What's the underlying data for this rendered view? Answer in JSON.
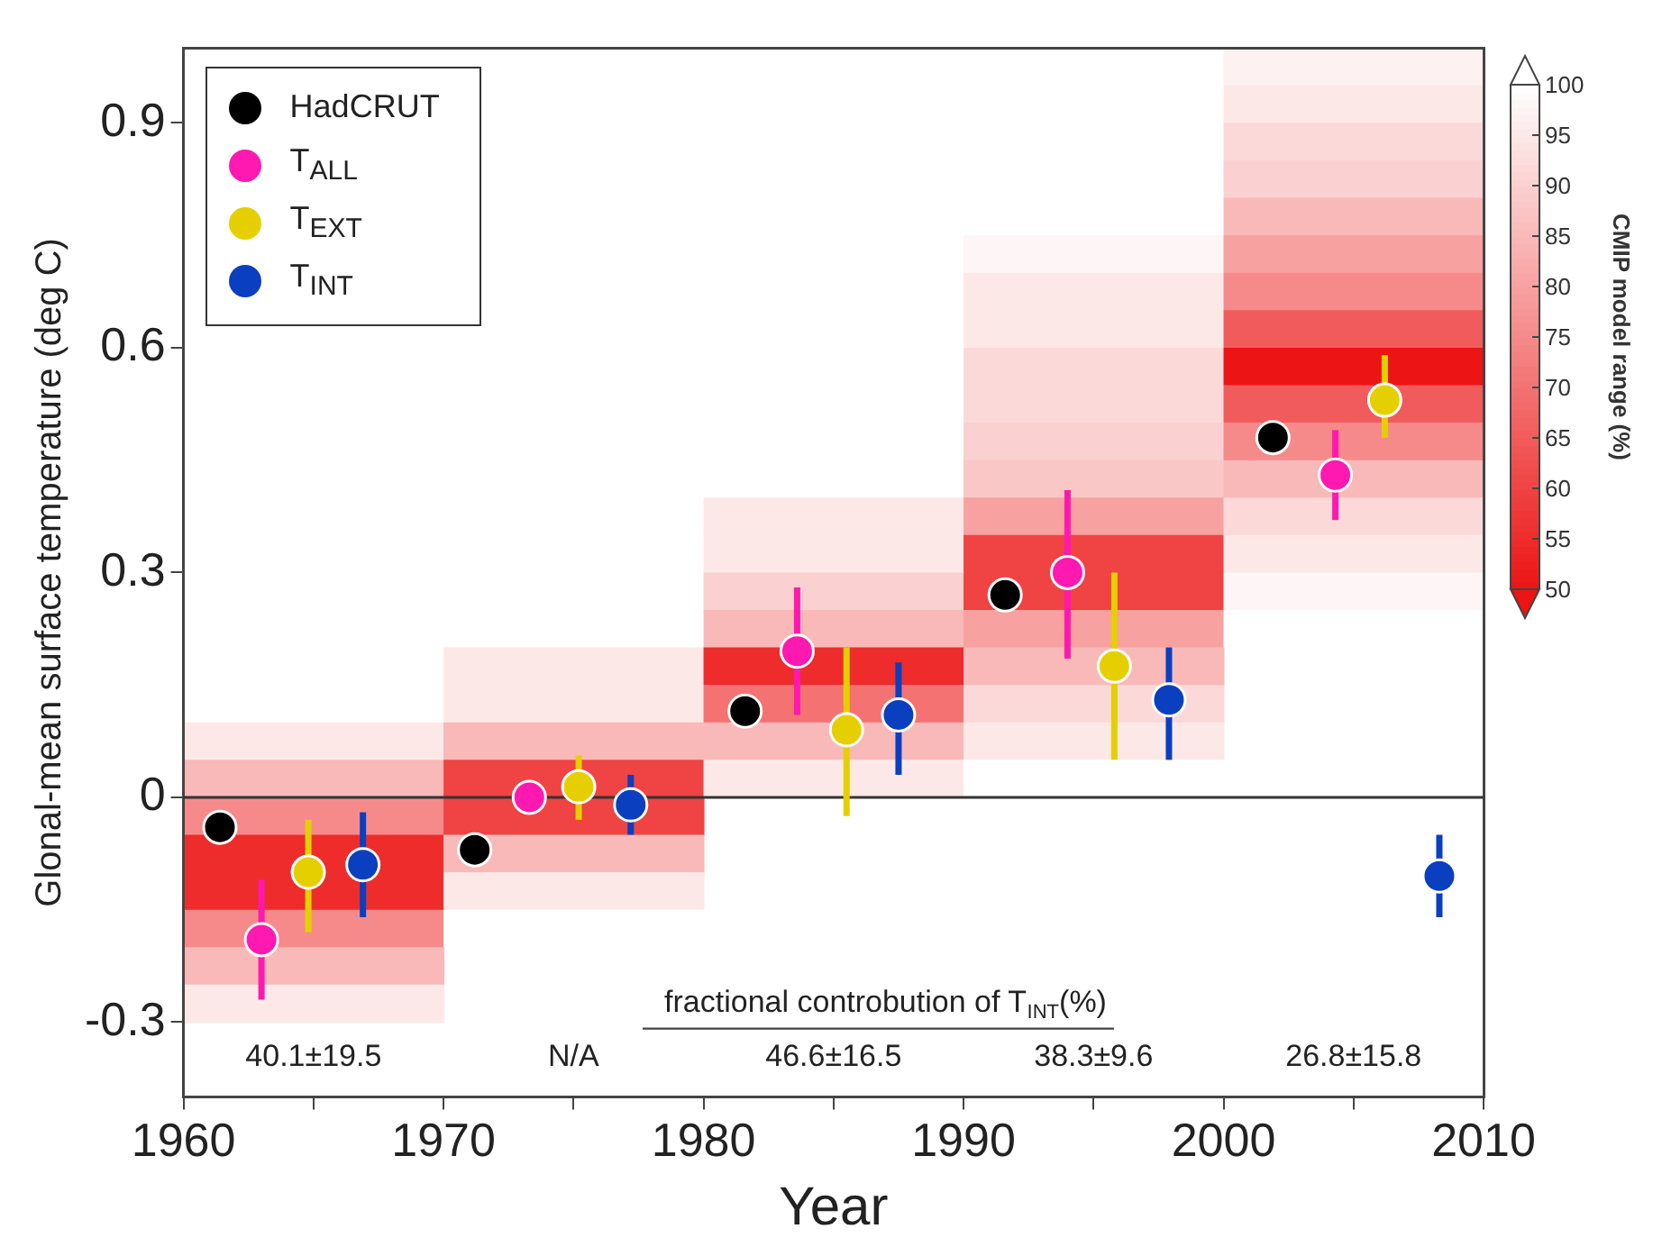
{
  "chart_data": [
    {
      "type": "heatmap",
      "clabel": "CMIP model range (%)",
      "xlim": [
        1960,
        2010
      ],
      "xticks": [
        1960,
        1970,
        1980,
        1990,
        2000,
        2010
      ],
      "ylim": [
        -0.3,
        1.0
      ],
      "yticks": [
        -0.3,
        0,
        0.3,
        0.6,
        0.9
      ],
      "tick_labels": false,
      "clim": [
        50,
        100
      ],
      "cticks": [
        50,
        55,
        60,
        65,
        70,
        75,
        80,
        85,
        90,
        95,
        100
      ],
      "cells": [
        [
          null,
          null,
          null,
          null,
          97
        ],
        [
          null,
          null,
          null,
          null,
          95
        ],
        [
          null,
          null,
          null,
          null,
          92
        ],
        [
          null,
          null,
          null,
          null,
          90
        ],
        [
          null,
          null,
          null,
          100,
          85
        ],
        [
          null,
          null,
          null,
          98,
          80
        ],
        [
          null,
          null,
          null,
          95,
          75
        ],
        [
          null,
          null,
          null,
          95,
          65
        ],
        [
          null,
          null,
          null,
          92,
          50
        ],
        [
          null,
          null,
          null,
          92,
          65
        ],
        [
          null,
          null,
          100,
          90,
          75
        ],
        [
          null,
          null,
          100,
          88,
          85
        ],
        [
          null,
          null,
          95,
          80,
          92
        ],
        [
          null,
          null,
          95,
          60,
          95
        ],
        [
          null,
          null,
          90,
          60,
          98
        ],
        [
          null,
          null,
          85,
          80,
          100
        ],
        [
          null,
          95,
          55,
          85,
          null
        ],
        [
          100,
          95,
          70,
          92,
          null
        ],
        [
          95,
          85,
          85,
          95,
          null
        ],
        [
          85,
          60,
          95,
          100,
          null
        ],
        [
          75,
          60,
          null,
          null,
          null
        ],
        [
          55,
          85,
          null,
          null,
          null
        ],
        [
          55,
          95,
          null,
          null,
          null
        ],
        [
          75,
          100,
          null,
          null,
          null
        ],
        [
          85,
          null,
          null,
          null,
          null
        ],
        [
          95,
          null,
          null,
          null,
          null
        ]
      ]
    },
    {
      "type": "scatter",
      "xlabel": "Year",
      "ylabel": "Glonal-mean surface temperature (deg C)",
      "xlim": [
        1960,
        2010
      ],
      "xticks": [
        1960,
        {
          "value": 1965,
          "label": null
        },
        1970,
        {
          "value": 1975,
          "label": null
        },
        1980,
        {
          "value": 1985,
          "label": null
        },
        1990,
        {
          "value": 1995,
          "label": null
        },
        2000,
        {
          "value": 2005,
          "label": null
        },
        2010
      ],
      "ylim": [
        -0.4,
        1.0
      ],
      "yticks": [
        -0.3,
        0,
        0.3,
        0.6,
        0.9
      ],
      "legend": "top left",
      "marker": "circle",
      "ref_lines": [
        {
          "axis": "y",
          "value": 0,
          "color": "#333333"
        }
      ],
      "annotations": [
        "fractional controbution of T$_{INT}$(%)",
        "40.1±19.5",
        "N/A",
        "46.6±16.5",
        "38.3±9.6",
        "26.8±15.8"
      ],
      "series": [
        {
          "name": "HadCRUT",
          "color": "#000000",
          "x": [
            1961.4,
            1971.2,
            1981.6,
            1991.6,
            2001.9
          ],
          "values": [
            -0.04,
            -0.07,
            0.115,
            0.27,
            0.48
          ]
        },
        {
          "name": "T$_{ALL}$",
          "color": "#ff19b0",
          "x": [
            1963.0,
            1973.3,
            1983.6,
            1994.0,
            2004.3
          ],
          "values": [
            -0.19,
            0.0,
            0.195,
            0.3,
            0.43
          ],
          "errors": [
            [
              -0.27,
              -0.11
            ],
            null,
            [
              0.11,
              0.28
            ],
            [
              0.185,
              0.41
            ],
            [
              0.37,
              0.49
            ]
          ]
        },
        {
          "name": "T$_{EXT}$",
          "color": "#e6cf00",
          "x": [
            1964.8,
            1975.2,
            1985.5,
            1995.8,
            2006.2
          ],
          "values": [
            -0.1,
            0.014,
            0.09,
            0.175,
            0.53
          ],
          "errors": [
            [
              -0.18,
              -0.03
            ],
            [
              -0.03,
              0.056
            ],
            [
              -0.025,
              0.2
            ],
            [
              0.05,
              0.3
            ],
            [
              0.48,
              0.59
            ]
          ]
        },
        {
          "name": "T$_{INT}$",
          "color": "#0a3fc0",
          "x": [
            1966.9,
            1977.2,
            1987.5,
            1997.9,
            2008.3
          ],
          "values": [
            -0.09,
            -0.01,
            0.11,
            0.13,
            -0.105
          ],
          "errors": [
            [
              -0.16,
              -0.02
            ],
            [
              -0.05,
              0.03
            ],
            [
              0.03,
              0.18
            ],
            [
              0.05,
              0.2
            ],
            [
              -0.16,
              -0.05
            ]
          ]
        }
      ]
    }
  ]
}
